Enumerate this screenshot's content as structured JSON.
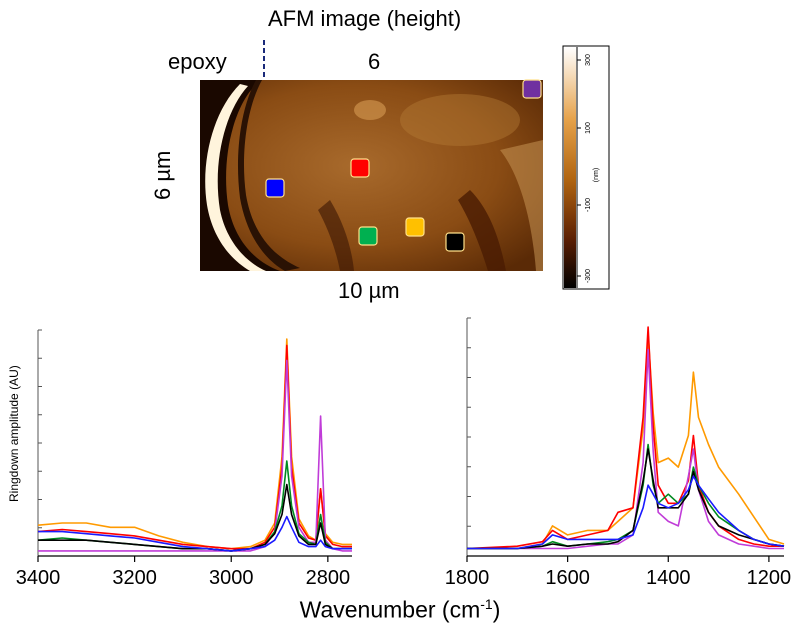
{
  "afm": {
    "title": "AFM image (height)",
    "epoxy_label": "epoxy",
    "depth_label": "6",
    "width_label": "10 µm",
    "height_label": "6 µm",
    "colorbar": {
      "unit": "(nm)",
      "ticks": [
        "300",
        "100",
        "-100",
        "-300"
      ],
      "colors": [
        "#ffffff",
        "#e6a24a",
        "#b06410",
        "#5a1e02",
        "#000000"
      ]
    },
    "markers": [
      {
        "color": "#7030a0",
        "name": "purple"
      },
      {
        "color": "#ff0000",
        "name": "red"
      },
      {
        "color": "#0000ff",
        "name": "blue"
      },
      {
        "color": "#00b050",
        "name": "green"
      },
      {
        "color": "#ffc000",
        "name": "orange"
      },
      {
        "color": "#000000",
        "name": "black"
      }
    ]
  },
  "chart_data": [
    {
      "type": "line",
      "xlim": [
        3400,
        2750
      ],
      "x_ticks": [
        3400,
        3200,
        3000,
        2800
      ],
      "ylabel": "Ringdown amplitude (AU)",
      "xlabel": "Wavenumber (cm-1)",
      "series": [
        {
          "color": "#ff9a00",
          "x": [
            3400,
            3350,
            3300,
            3250,
            3200,
            3150,
            3100,
            3050,
            3000,
            2960,
            2930,
            2910,
            2895,
            2885,
            2875,
            2860,
            2840,
            2825,
            2815,
            2805,
            2790,
            2770,
            2750
          ],
          "y": [
            0.13,
            0.14,
            0.14,
            0.12,
            0.12,
            0.08,
            0.05,
            0.03,
            0.02,
            0.03,
            0.06,
            0.14,
            0.45,
            1.0,
            0.45,
            0.16,
            0.08,
            0.06,
            0.3,
            0.09,
            0.05,
            0.04,
            0.04
          ]
        },
        {
          "color": "#ff0000",
          "x": [
            3400,
            3350,
            3300,
            3250,
            3200,
            3150,
            3100,
            3050,
            3000,
            2960,
            2930,
            2910,
            2895,
            2885,
            2875,
            2860,
            2840,
            2825,
            2815,
            2805,
            2790,
            2770,
            2750
          ],
          "y": [
            0.1,
            0.11,
            0.1,
            0.09,
            0.08,
            0.06,
            0.04,
            0.03,
            0.02,
            0.02,
            0.05,
            0.12,
            0.4,
            0.97,
            0.4,
            0.14,
            0.07,
            0.06,
            0.3,
            0.08,
            0.04,
            0.03,
            0.03
          ]
        },
        {
          "color": "#c03cd8",
          "x": [
            3400,
            3350,
            3300,
            3250,
            3200,
            3150,
            3100,
            3050,
            3000,
            2960,
            2930,
            2910,
            2895,
            2885,
            2875,
            2860,
            2840,
            2825,
            2815,
            2805,
            2790,
            2770,
            2750
          ],
          "y": [
            0.01,
            0.01,
            0.01,
            0.01,
            0.01,
            0.01,
            0.01,
            0.01,
            0.01,
            0.01,
            0.03,
            0.1,
            0.36,
            0.9,
            0.36,
            0.12,
            0.05,
            0.05,
            0.64,
            0.06,
            0.02,
            0.01,
            0.01
          ]
        },
        {
          "color": "#008a20",
          "x": [
            3400,
            3350,
            3300,
            3250,
            3200,
            3150,
            3100,
            3050,
            3000,
            2960,
            2930,
            2910,
            2895,
            2885,
            2875,
            2860,
            2840,
            2825,
            2815,
            2805,
            2790,
            2770,
            2750
          ],
          "y": [
            0.06,
            0.07,
            0.06,
            0.05,
            0.04,
            0.03,
            0.02,
            0.02,
            0.01,
            0.02,
            0.04,
            0.1,
            0.22,
            0.43,
            0.22,
            0.09,
            0.05,
            0.04,
            0.18,
            0.05,
            0.02,
            0.02,
            0.02
          ]
        },
        {
          "color": "#000000",
          "x": [
            3400,
            3350,
            3300,
            3250,
            3200,
            3150,
            3100,
            3050,
            3000,
            2960,
            2930,
            2910,
            2895,
            2885,
            2875,
            2860,
            2840,
            2825,
            2815,
            2805,
            2790,
            2770,
            2750
          ],
          "y": [
            0.06,
            0.06,
            0.06,
            0.05,
            0.04,
            0.03,
            0.02,
            0.02,
            0.01,
            0.02,
            0.04,
            0.09,
            0.18,
            0.32,
            0.18,
            0.08,
            0.04,
            0.04,
            0.14,
            0.04,
            0.02,
            0.02,
            0.02
          ]
        },
        {
          "color": "#1a1aff",
          "x": [
            3400,
            3350,
            3300,
            3250,
            3200,
            3150,
            3100,
            3050,
            3000,
            2960,
            2930,
            2910,
            2895,
            2885,
            2875,
            2860,
            2840,
            2825,
            2815,
            2805,
            2790,
            2770,
            2750
          ],
          "y": [
            0.1,
            0.1,
            0.09,
            0.08,
            0.07,
            0.05,
            0.03,
            0.02,
            0.01,
            0.02,
            0.03,
            0.06,
            0.12,
            0.17,
            0.12,
            0.05,
            0.03,
            0.03,
            0.06,
            0.03,
            0.02,
            0.02,
            0.02
          ]
        }
      ]
    },
    {
      "type": "line",
      "xlim": [
        1800,
        1170
      ],
      "x_ticks": [
        1800,
        1600,
        1400,
        1200
      ],
      "series": [
        {
          "color": "#ff9a00",
          "x": [
            1800,
            1700,
            1650,
            1630,
            1600,
            1560,
            1520,
            1500,
            1470,
            1450,
            1440,
            1430,
            1420,
            1400,
            1380,
            1360,
            1350,
            1340,
            1320,
            1300,
            1260,
            1230,
            1200,
            1170
          ],
          "y": [
            0.02,
            0.02,
            0.04,
            0.12,
            0.08,
            0.1,
            0.1,
            0.14,
            0.2,
            0.55,
            0.97,
            0.62,
            0.4,
            0.42,
            0.38,
            0.52,
            0.8,
            0.6,
            0.48,
            0.38,
            0.26,
            0.16,
            0.06,
            0.04
          ]
        },
        {
          "color": "#ff0000",
          "x": [
            1800,
            1700,
            1650,
            1630,
            1600,
            1560,
            1520,
            1500,
            1470,
            1450,
            1440,
            1430,
            1420,
            1400,
            1380,
            1360,
            1350,
            1340,
            1320,
            1300,
            1260,
            1230,
            1200,
            1170
          ],
          "y": [
            0.02,
            0.03,
            0.05,
            0.1,
            0.06,
            0.08,
            0.1,
            0.18,
            0.2,
            0.6,
            1.0,
            0.56,
            0.3,
            0.22,
            0.22,
            0.32,
            0.52,
            0.3,
            0.18,
            0.12,
            0.06,
            0.04,
            0.03,
            0.03
          ]
        },
        {
          "color": "#c03cd8",
          "x": [
            1800,
            1700,
            1650,
            1630,
            1600,
            1560,
            1520,
            1500,
            1470,
            1450,
            1440,
            1430,
            1420,
            1400,
            1380,
            1360,
            1350,
            1340,
            1320,
            1300,
            1260,
            1230,
            1200,
            1170
          ],
          "y": [
            0.02,
            0.02,
            0.02,
            0.02,
            0.02,
            0.03,
            0.04,
            0.04,
            0.08,
            0.4,
            0.9,
            0.45,
            0.18,
            0.14,
            0.12,
            0.34,
            0.46,
            0.28,
            0.14,
            0.08,
            0.04,
            0.03,
            0.02,
            0.02
          ]
        },
        {
          "color": "#008a20",
          "x": [
            1800,
            1700,
            1650,
            1630,
            1600,
            1560,
            1520,
            1500,
            1470,
            1450,
            1440,
            1430,
            1420,
            1400,
            1380,
            1360,
            1350,
            1340,
            1320,
            1300,
            1260,
            1230,
            1200,
            1170
          ],
          "y": [
            0.02,
            0.02,
            0.03,
            0.05,
            0.03,
            0.04,
            0.05,
            0.06,
            0.1,
            0.3,
            0.48,
            0.3,
            0.22,
            0.26,
            0.22,
            0.26,
            0.38,
            0.3,
            0.22,
            0.16,
            0.1,
            0.06,
            0.04,
            0.03
          ]
        },
        {
          "color": "#000000",
          "x": [
            1800,
            1700,
            1650,
            1630,
            1600,
            1560,
            1520,
            1500,
            1470,
            1450,
            1440,
            1430,
            1420,
            1400,
            1380,
            1360,
            1350,
            1340,
            1320,
            1300,
            1260,
            1230,
            1200,
            1170
          ],
          "y": [
            0.02,
            0.02,
            0.03,
            0.04,
            0.03,
            0.04,
            0.04,
            0.05,
            0.1,
            0.32,
            0.46,
            0.32,
            0.2,
            0.2,
            0.2,
            0.26,
            0.36,
            0.28,
            0.18,
            0.12,
            0.08,
            0.06,
            0.04,
            0.03
          ]
        },
        {
          "color": "#1a1aff",
          "x": [
            1800,
            1700,
            1650,
            1630,
            1600,
            1560,
            1520,
            1500,
            1470,
            1450,
            1440,
            1430,
            1420,
            1400,
            1380,
            1360,
            1350,
            1340,
            1320,
            1300,
            1260,
            1230,
            1200,
            1170
          ],
          "y": [
            0.02,
            0.02,
            0.04,
            0.08,
            0.06,
            0.06,
            0.06,
            0.06,
            0.08,
            0.2,
            0.3,
            0.26,
            0.22,
            0.2,
            0.22,
            0.28,
            0.34,
            0.3,
            0.24,
            0.18,
            0.1,
            0.06,
            0.04,
            0.03
          ]
        }
      ]
    }
  ]
}
